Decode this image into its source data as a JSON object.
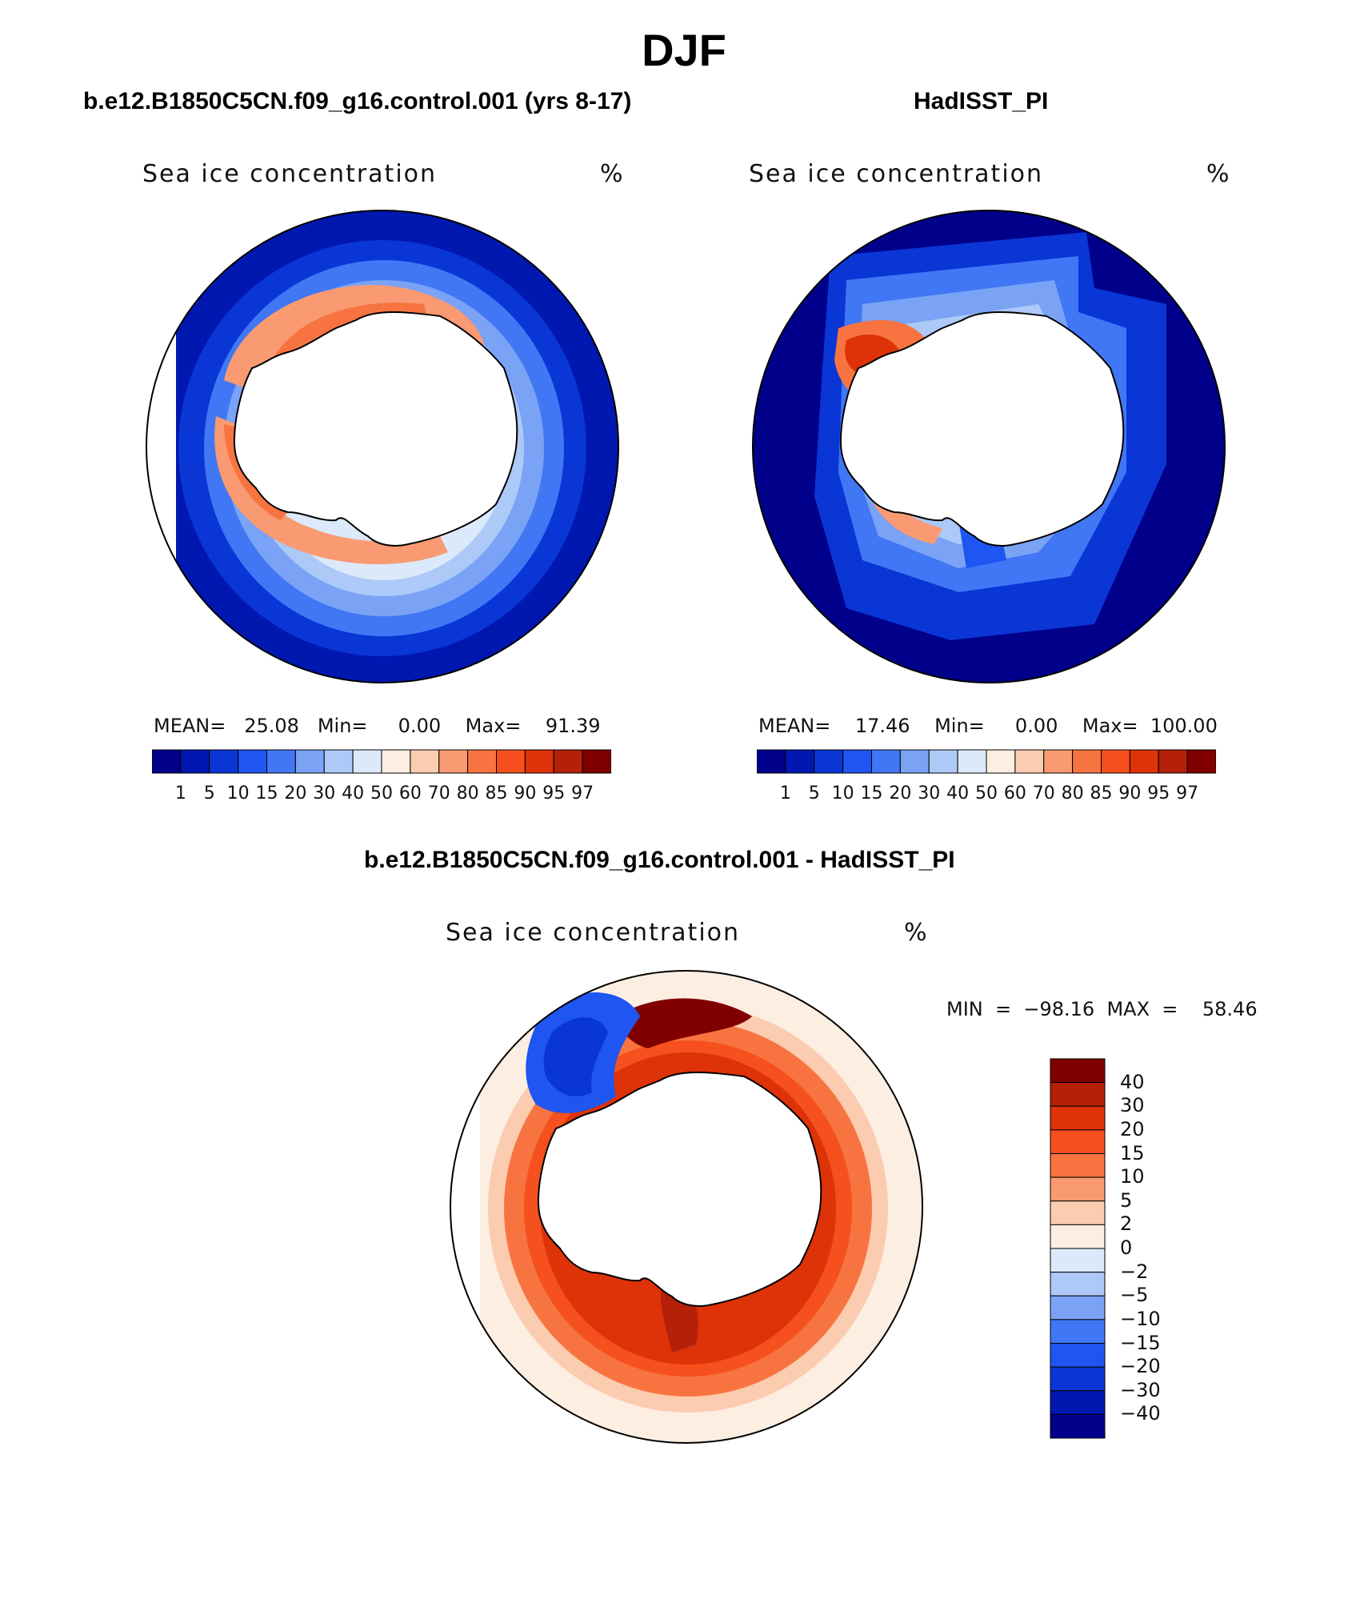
{
  "figure": {
    "title": "DJF"
  },
  "panels": [
    {
      "title": "b.e12.B1850C5CN.f09_g16.control.001 (yrs 8-17)",
      "left_label": "Sea ice concentration",
      "unit": "%",
      "stats": "MEAN=   25.08   Min=     0.00    Max=    91.39",
      "map": "model"
    },
    {
      "title": "HadISST_PI",
      "left_label": "Sea ice concentration",
      "unit": "%",
      "stats": "MEAN=    17.46    Min=     0.00    Max=  100.00",
      "map": "obs"
    }
  ],
  "difference": {
    "title": "b.e12.B1850C5CN.f09_g16.control.001 - HadISST_PI",
    "left_label": "Sea ice concentration",
    "unit": "%",
    "minmax": "MIN  =  −98.16  MAX  =    58.46"
  },
  "colorbar_abs": {
    "colors": [
      "#00008b",
      "#0018b0",
      "#0a36d6",
      "#1f55f0",
      "#4177f5",
      "#7aa3f5",
      "#adc9f7",
      "#dce9fa",
      "#fdeee2",
      "#fbccb0",
      "#f99a72",
      "#f77441",
      "#f5501d",
      "#de3208",
      "#b52008",
      "#800000"
    ],
    "labels": [
      "1",
      "5",
      "10",
      "15",
      "20",
      "30",
      "40",
      "50",
      "60",
      "70",
      "80",
      "85",
      "90",
      "95",
      "97"
    ]
  },
  "colorbar_diff": {
    "colors": [
      "#800000",
      "#b52008",
      "#de3208",
      "#f5501d",
      "#f77441",
      "#f99a72",
      "#fbccb0",
      "#fdeee2",
      "#dce9fa",
      "#adc9f7",
      "#7aa3f5",
      "#4177f5",
      "#1f55f0",
      "#0a36d6",
      "#0018b0",
      "#00008b"
    ],
    "labels": [
      "40",
      "30",
      "20",
      "15",
      "10",
      "5",
      "2",
      "0",
      "−2",
      "−5",
      "−10",
      "−15",
      "−20",
      "−30",
      "−40"
    ]
  }
}
